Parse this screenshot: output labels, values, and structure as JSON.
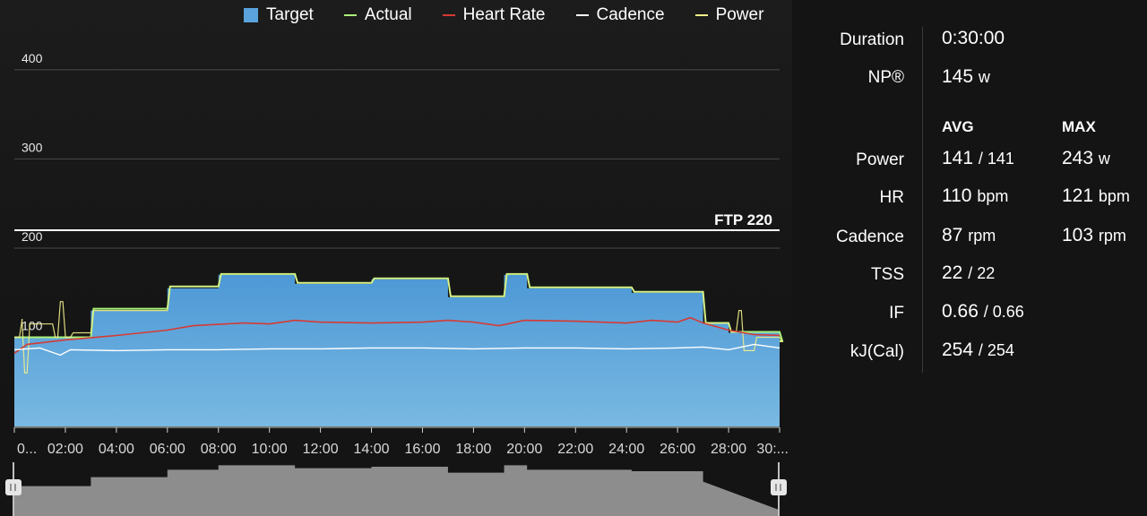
{
  "legend": {
    "target": "Target",
    "actual": "Actual",
    "heart_rate": "Heart Rate",
    "cadence": "Cadence",
    "power": "Power"
  },
  "colors": {
    "target": "#5aa3dc",
    "actual": "#a9f27a",
    "heart_rate": "#d63a32",
    "cadence": "#ffffff",
    "power": "#f2ee8a",
    "ftp_line": "#ffffff",
    "overview_fill": "#8d8d8d"
  },
  "ftp_label": "FTP 220",
  "chart_data": {
    "type": "area",
    "y_tick_labels": [
      "100",
      "200",
      "300",
      "400"
    ],
    "y_ticks": [
      100,
      200,
      300,
      400
    ],
    "ylim": [
      0,
      420
    ],
    "x_tick_labels": [
      "0...",
      "02:00",
      "04:00",
      "06:00",
      "08:00",
      "10:00",
      "12:00",
      "14:00",
      "16:00",
      "18:00",
      "20:00",
      "22:00",
      "24:00",
      "26:00",
      "28:00",
      "30:..."
    ],
    "x_ticks_min": [
      0,
      2,
      4,
      6,
      8,
      10,
      12,
      14,
      16,
      18,
      20,
      22,
      24,
      26,
      28,
      30
    ],
    "xlim_min": [
      0,
      30
    ],
    "ftp": 220,
    "grid": true,
    "legend_position": "top",
    "series": [
      {
        "name": "Target",
        "type": "step-area",
        "points_min_watts": [
          [
            0,
            100
          ],
          [
            3,
            130
          ],
          [
            6,
            155
          ],
          [
            8,
            170
          ],
          [
            11,
            160
          ],
          [
            14,
            165
          ],
          [
            17,
            145
          ],
          [
            19.2,
            170
          ],
          [
            20.1,
            155
          ],
          [
            24.2,
            150
          ],
          [
            27,
            115
          ],
          [
            28,
            105
          ],
          [
            30,
            95
          ]
        ]
      },
      {
        "name": "Actual",
        "type": "line",
        "points_min_watts": [
          [
            0,
            100
          ],
          [
            3,
            132
          ],
          [
            6,
            157
          ],
          [
            8,
            171
          ],
          [
            11,
            161
          ],
          [
            14,
            166
          ],
          [
            17,
            146
          ],
          [
            19.2,
            171
          ],
          [
            20.1,
            156
          ],
          [
            24.2,
            151
          ],
          [
            27,
            116
          ],
          [
            28,
            106
          ],
          [
            30,
            96
          ]
        ]
      },
      {
        "name": "Heart Rate",
        "type": "line",
        "points_min_value": [
          [
            0,
            82
          ],
          [
            0.5,
            92
          ],
          [
            2,
            97
          ],
          [
            4,
            102
          ],
          [
            6,
            108
          ],
          [
            7,
            113
          ],
          [
            9,
            116
          ],
          [
            10,
            115
          ],
          [
            11,
            119
          ],
          [
            12,
            117
          ],
          [
            14,
            116
          ],
          [
            16,
            117
          ],
          [
            17,
            119
          ],
          [
            18,
            117
          ],
          [
            19,
            113
          ],
          [
            20,
            119
          ],
          [
            22,
            118
          ],
          [
            24,
            116
          ],
          [
            25,
            119
          ],
          [
            26,
            117
          ],
          [
            26.5,
            122
          ],
          [
            27,
            116
          ],
          [
            28,
            108
          ],
          [
            29,
            103
          ],
          [
            30,
            102
          ]
        ]
      },
      {
        "name": "Cadence",
        "type": "line",
        "points_min_value": [
          [
            0,
            86
          ],
          [
            1,
            88
          ],
          [
            1.8,
            80
          ],
          [
            2.2,
            86
          ],
          [
            4,
            85
          ],
          [
            6,
            86
          ],
          [
            8,
            86
          ],
          [
            10,
            87
          ],
          [
            12,
            87
          ],
          [
            14,
            88
          ],
          [
            16,
            88
          ],
          [
            18,
            87
          ],
          [
            20,
            88
          ],
          [
            22,
            88
          ],
          [
            24,
            87
          ],
          [
            26,
            88
          ],
          [
            27,
            89
          ],
          [
            28,
            86
          ],
          [
            29,
            92
          ],
          [
            30,
            88
          ]
        ]
      },
      {
        "name": "Power",
        "type": "line",
        "points_min_watts": [
          [
            0,
            100
          ],
          [
            0.2,
            120
          ],
          [
            0.3,
            60
          ],
          [
            0.5,
            115
          ],
          [
            1.5,
            100
          ],
          [
            1.7,
            140
          ],
          [
            1.9,
            100
          ],
          [
            2.2,
            105
          ],
          [
            3,
            130
          ],
          [
            6,
            157
          ],
          [
            8,
            171
          ],
          [
            11,
            161
          ],
          [
            14,
            166
          ],
          [
            17,
            146
          ],
          [
            19.2,
            171
          ],
          [
            20.1,
            156
          ],
          [
            24.2,
            151
          ],
          [
            27,
            116
          ],
          [
            28,
            106
          ],
          [
            28.3,
            130
          ],
          [
            28.5,
            85
          ],
          [
            29,
            100
          ],
          [
            30,
            95
          ]
        ]
      }
    ],
    "overview": {
      "type": "step-area",
      "points_min_watts": [
        [
          0,
          100
        ],
        [
          3,
          130
        ],
        [
          6,
          155
        ],
        [
          8,
          170
        ],
        [
          11,
          160
        ],
        [
          14,
          165
        ],
        [
          17,
          145
        ],
        [
          19.2,
          170
        ],
        [
          20.1,
          155
        ],
        [
          24.2,
          150
        ],
        [
          27,
          115
        ],
        [
          30,
          90
        ]
      ]
    }
  },
  "stats": {
    "duration_label": "Duration",
    "duration_value": "0:30:00",
    "np_label": "NP®",
    "np_value": "145",
    "np_unit": "w",
    "avg_header": "AVG",
    "max_header": "MAX",
    "rows": [
      {
        "label": "Power",
        "avg": "141",
        "avg2": "/ 141",
        "max": "243",
        "max_unit": "w"
      },
      {
        "label": "HR",
        "avg": "110",
        "avg2": "bpm",
        "max": "121",
        "max_unit": "bpm"
      },
      {
        "label": "Cadence",
        "avg": "87",
        "avg2": "rpm",
        "max": "103",
        "max_unit": "rpm"
      },
      {
        "label": "TSS",
        "avg": "22",
        "avg2": "/ 22",
        "max": "",
        "max_unit": ""
      },
      {
        "label": "IF",
        "avg": "0.66",
        "avg2": "/ 0.66",
        "max": "",
        "max_unit": ""
      },
      {
        "label": "kJ(Cal)",
        "avg": "254",
        "avg2": "/ 254",
        "max": "",
        "max_unit": ""
      }
    ]
  }
}
